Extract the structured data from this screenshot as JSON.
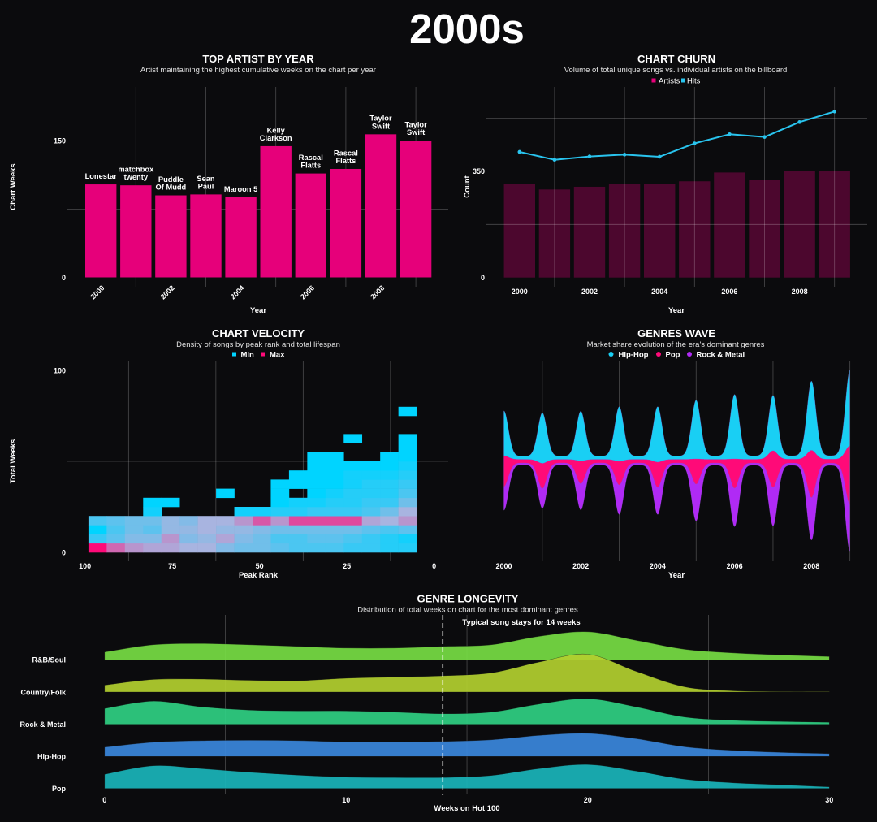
{
  "page_title": "2000s",
  "chart_data": [
    {
      "type": "bar",
      "title": "TOP ARTIST BY YEAR",
      "subtitle": "Artist maintaining the highest cumulative weeks on the chart per year",
      "xlabel": "Year",
      "ylabel": "Chart Weeks",
      "categories": [
        "2000",
        "2001",
        "2002",
        "2003",
        "2004",
        "2005",
        "2006",
        "2007",
        "2008",
        "2009"
      ],
      "x_tick_labels": [
        "2000",
        "2002",
        "2004",
        "2006",
        "2008"
      ],
      "y_ticks": [
        0,
        150
      ],
      "y_tick_labels": [
        "0",
        "150"
      ],
      "ylim": [
        0,
        209
      ],
      "grid": true,
      "minor_grid_x": [
        "2001",
        "2003",
        "2005",
        "2007",
        "2009"
      ],
      "minor_grid_y": [
        75
      ],
      "values": [
        102,
        101,
        90,
        91,
        88,
        144,
        114,
        119,
        157,
        150
      ],
      "bar_labels": [
        [
          "Lonestar"
        ],
        [
          "matchbox",
          "twenty"
        ],
        [
          "Puddle",
          "Of Mudd"
        ],
        [
          "Sean",
          "Paul"
        ],
        [
          "Maroon 5"
        ],
        [
          "Kelly",
          "Clarkson"
        ],
        [
          "Rascal",
          "Flatts"
        ],
        [
          "Rascal",
          "Flatts"
        ],
        [
          "Taylor",
          "Swift"
        ],
        [
          "Taylor",
          "Swift"
        ]
      ],
      "color": "#e6007a"
    },
    {
      "type": "bar+line",
      "title": "CHART CHURN",
      "subtitle": "Volume of total unique songs vs. individual artists on the billboard",
      "legend_position": "top",
      "legend": [
        {
          "label": "Artists",
          "color": "#e6007a"
        },
        {
          "label": "Hits",
          "color": "#29c4ee"
        }
      ],
      "xlabel": "Year",
      "ylabel": "Count",
      "categories": [
        "2000",
        "2001",
        "2002",
        "2003",
        "2004",
        "2005",
        "2006",
        "2007",
        "2008",
        "2009"
      ],
      "x_tick_labels": [
        "2000",
        "2002",
        "2004",
        "2006",
        "2008"
      ],
      "y_ticks": [
        0,
        350
      ],
      "y_tick_labels": [
        "0",
        "350"
      ],
      "ylim": [
        0,
        628
      ],
      "grid": true,
      "minor_grid_x": [
        "2001",
        "2003",
        "2005",
        "2007",
        "2009"
      ],
      "minor_grid_y": [
        175,
        525
      ],
      "series": [
        {
          "name": "Artists",
          "type": "bar",
          "color": "#e6007a",
          "opacity": 0.3,
          "values": [
            307,
            290,
            299,
            307,
            307,
            317,
            346,
            322,
            351,
            350
          ]
        },
        {
          "name": "Hits",
          "type": "line",
          "color": "#29c4ee",
          "values": [
            414,
            388,
            399,
            405,
            398,
            442,
            472,
            463,
            512,
            547
          ]
        }
      ]
    },
    {
      "type": "heatmap",
      "title": "CHART VELOCITY",
      "subtitle": "Density of songs by peak rank and total lifespan",
      "legend_position": "top",
      "legend": [
        {
          "label": "Min",
          "color": "#00d4ff"
        },
        {
          "label": "Max",
          "color": "#ff0a78"
        }
      ],
      "xlabel": "Peak Rank",
      "ylabel": "Total Weeks",
      "x_ticks": [
        100,
        75,
        50,
        25,
        0
      ],
      "x_tick_labels": [
        "100",
        "75",
        "50",
        "25",
        "0"
      ],
      "y_ticks": [
        0,
        100
      ],
      "y_tick_labels": [
        "0",
        "100"
      ],
      "xlim": [
        100,
        0
      ],
      "ylim": [
        0,
        100
      ],
      "minor_grid_x": [
        87.5,
        62.5,
        37.5,
        12.5
      ],
      "minor_grid_y": [
        50
      ],
      "x_bin_start": 99,
      "x_bin_end": 5,
      "y_bin_size": 5,
      "value_scale": "0 = Min, 1 = Max (relative density)",
      "columns": [
        [
          1.0,
          0.15,
          0.0,
          0.2
        ],
        [
          0.7,
          0.25,
          0.2,
          0.25
        ],
        [
          0.55,
          0.35,
          0.3,
          0.3
        ],
        [
          0.5,
          0.35,
          0.25,
          0.3,
          0.05,
          0.0
        ],
        [
          0.5,
          0.55,
          0.4,
          0.4,
          null,
          0.0
        ],
        [
          0.45,
          0.35,
          0.4,
          0.35
        ],
        [
          0.45,
          0.4,
          0.45,
          0.45
        ],
        [
          0.35,
          0.5,
          0.4,
          0.45,
          null,
          null,
          0.0
        ],
        [
          0.3,
          0.35,
          0.4,
          0.55,
          0.05
        ],
        [
          0.3,
          0.3,
          0.35,
          0.75,
          0.05
        ],
        [
          0.25,
          0.2,
          0.3,
          0.55,
          0.1,
          0.0,
          0.0,
          0.0
        ],
        [
          0.2,
          0.2,
          0.3,
          0.8,
          0.1,
          0.05,
          null,
          0.0,
          0.0
        ],
        [
          0.2,
          0.25,
          0.3,
          0.8,
          0.15,
          0.05,
          0.0,
          0.0,
          0.0,
          0.0,
          0.0
        ],
        [
          0.2,
          0.25,
          0.3,
          0.8,
          0.15,
          0.1,
          0.05,
          0.0,
          0.0,
          0.0,
          0.0
        ],
        [
          0.15,
          0.2,
          0.3,
          0.8,
          0.15,
          0.1,
          0.1,
          0.05,
          0.05,
          0.0,
          null,
          null,
          0.0
        ],
        [
          0.15,
          0.15,
          0.25,
          0.5,
          0.2,
          0.15,
          0.1,
          0.1,
          0.05,
          0.0
        ],
        [
          0.1,
          0.1,
          0.2,
          0.45,
          0.3,
          0.15,
          0.1,
          0.1,
          0.05,
          0.0,
          0.0
        ],
        [
          0.1,
          0.05,
          0.25,
          0.55,
          0.45,
          0.3,
          0.2,
          0.15,
          0.1,
          0.05,
          0.0,
          0.0,
          0.0,
          null,
          null,
          0.0
        ]
      ]
    },
    {
      "type": "area",
      "subtype": "streamgraph",
      "title": "GENRES WAVE",
      "subtitle": "Market share evolution of the era's dominant genres",
      "legend_position": "top",
      "legend": [
        {
          "label": "Hip-Hop",
          "color": "#19cff4"
        },
        {
          "label": "Pop",
          "color": "#ff0a78"
        },
        {
          "label": "Rock & Metal",
          "color": "#b02af5"
        }
      ],
      "xlabel": "Year",
      "x": [
        2000,
        2001,
        2002,
        2003,
        2004,
        2005,
        2006,
        2007,
        2008,
        2009
      ],
      "x_ticks": [
        2000,
        2002,
        2004,
        2006,
        2008
      ],
      "x_tick_labels": [
        "2000",
        "2002",
        "2004",
        "2006",
        "2008"
      ],
      "xlim": [
        2000,
        2009
      ],
      "minor_grid_x": [
        2001,
        2003,
        2005,
        2007,
        2009
      ],
      "series": [
        {
          "name": "Hip-Hop",
          "color": "#19cff4",
          "base": 3,
          "peak": [
            55,
            62,
            61,
            67,
            68,
            72,
            79,
            68,
            85,
            93
          ]
        },
        {
          "name": "Pop",
          "color": "#ff0a78",
          "base": 4,
          "peak": [
            38,
            31,
            28,
            29,
            31,
            31,
            36,
            45,
            58,
            72
          ]
        },
        {
          "name": "Rock & Metal",
          "color": "#b02af5",
          "base": 1.8,
          "peak": [
            29,
            24,
            32,
            36,
            33,
            45,
            47,
            47,
            52,
            57
          ]
        }
      ]
    },
    {
      "type": "ridgeline",
      "title": "GENRE LONGEVITY",
      "subtitle": "Distribution of total weeks on chart for the most dominant genres",
      "xlabel": "Weeks on Hot 100",
      "x_ticks": [
        0,
        10,
        20,
        30
      ],
      "x_tick_labels": [
        "0",
        "10",
        "20",
        "30"
      ],
      "xlim": [
        0,
        30
      ],
      "minor_grid_x": [
        5,
        15,
        25
      ],
      "annotation": {
        "value": 14,
        "label": "Typical song stays for 14 weeks"
      },
      "x": [
        0,
        2,
        4,
        6,
        8,
        10,
        12,
        14,
        16,
        18,
        20,
        22,
        24,
        26,
        28,
        30
      ],
      "series": [
        {
          "name": "R&B/Soul",
          "color": "#76db44",
          "density": [
            0.019,
            0.037,
            0.04,
            0.037,
            0.033,
            0.029,
            0.029,
            0.033,
            0.037,
            0.058,
            0.069,
            0.048,
            0.026,
            0.017,
            0.012,
            0.008
          ]
        },
        {
          "name": "Country/Folk",
          "color": "#b2cf2f",
          "density": [
            0.017,
            0.031,
            0.032,
            0.029,
            0.028,
            0.034,
            0.037,
            0.04,
            0.047,
            0.074,
            0.093,
            0.051,
            0.013,
            0.003,
            0.001,
            0.001
          ]
        },
        {
          "name": "Rock & Metal",
          "color": "#2fcf82",
          "density": [
            0.039,
            0.057,
            0.043,
            0.035,
            0.033,
            0.033,
            0.03,
            0.026,
            0.03,
            0.05,
            0.063,
            0.043,
            0.018,
            0.01,
            0.007,
            0.005
          ]
        },
        {
          "name": "Hip-Hop",
          "color": "#3a86dc",
          "density": [
            0.023,
            0.035,
            0.039,
            0.04,
            0.039,
            0.036,
            0.036,
            0.037,
            0.041,
            0.052,
            0.057,
            0.044,
            0.024,
            0.015,
            0.01,
            0.007
          ]
        },
        {
          "name": "Pop",
          "color": "#1ab4b9",
          "density": [
            0.035,
            0.056,
            0.049,
            0.04,
            0.033,
            0.028,
            0.027,
            0.027,
            0.032,
            0.049,
            0.059,
            0.043,
            0.023,
            0.014,
            0.009,
            0.004
          ]
        }
      ]
    }
  ]
}
